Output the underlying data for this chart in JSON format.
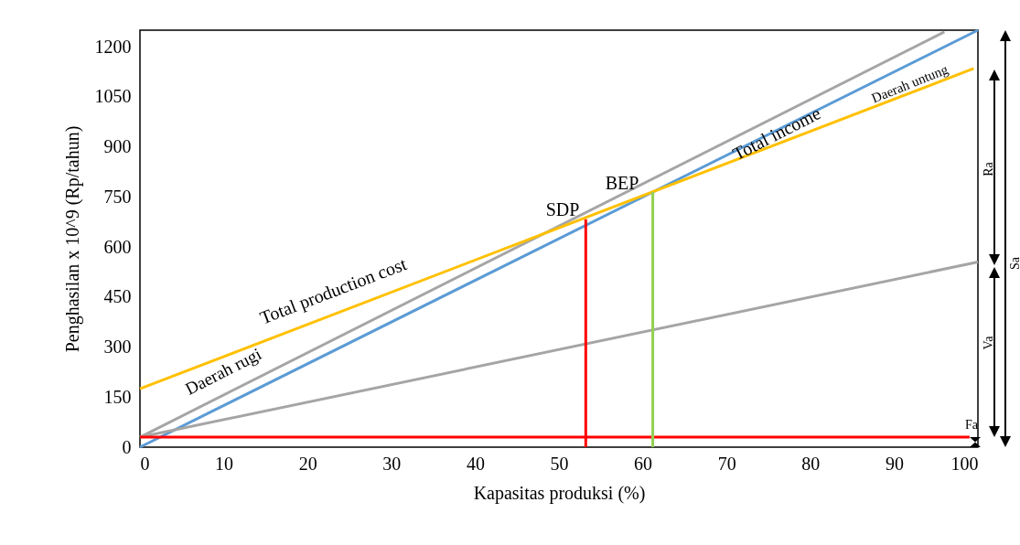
{
  "chart_data": {
    "type": "line",
    "xlabel": "Kapasitas produksi (%)",
    "ylabel": "Penghasilan x 10^9 (Rp/tahun)",
    "xlim": [
      0,
      100
    ],
    "ylim": [
      0,
      1250
    ],
    "xticks": [
      0,
      10,
      20,
      30,
      40,
      50,
      60,
      70,
      80,
      90,
      100
    ],
    "yticks": [
      0,
      150,
      300,
      450,
      600,
      750,
      900,
      1050,
      1200
    ],
    "grid": false,
    "marker": "none",
    "line_style": "solid",
    "series": [
      {
        "color": "#5b9bd5",
        "x": [
          0,
          100
        ],
        "values": [
          0,
          1250
        ]
      },
      {
        "color": "#a5a5a5",
        "x": [
          0,
          96
        ],
        "values": [
          30,
          1245
        ]
      },
      {
        "color": "#ffc000",
        "x": [
          0,
          99.5
        ],
        "values": [
          175,
          1135
        ]
      },
      {
        "color": "#a5a5a5",
        "x": [
          0,
          100
        ],
        "values": [
          30,
          555
        ]
      },
      {
        "color": "#ff0000",
        "x": [
          0,
          99
        ],
        "values": [
          30,
          30
        ]
      },
      {
        "color": "#ff0000",
        "x": [
          53.2,
          53.2
        ],
        "values": [
          0,
          683
        ]
      },
      {
        "color": "#92d050",
        "x": [
          61.2,
          61.2
        ],
        "values": [
          0,
          765
        ]
      }
    ],
    "annotations": [
      "SDP",
      "BEP",
      "Total income",
      "Total production  cost",
      "Daerah rugi",
      "Daerah untung",
      "Fa",
      "Ra",
      "Va",
      "Sa"
    ]
  }
}
